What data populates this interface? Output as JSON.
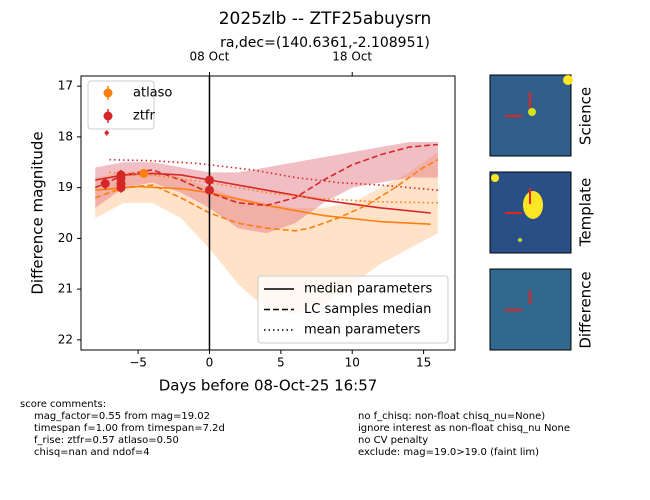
{
  "chart_data": {
    "type": "lightcurve",
    "title": "2025zlb -- ZTF25abuysrn",
    "subtitle": "ra,dec=(140.6361,-2.108951)",
    "x_label": "Days before 08-Oct-25 16:57",
    "y_label": "Difference magnitude",
    "xlim": [
      -9,
      17.2
    ],
    "ylim": [
      22.2,
      16.8
    ],
    "xticks": [
      {
        "value": -5,
        "label": "−5"
      },
      0,
      5,
      10,
      15
    ],
    "yticks": [
      17,
      18,
      19,
      20,
      21,
      22
    ],
    "top_xticks": [
      {
        "value": 0,
        "label": "08 Oct"
      },
      {
        "value": 10,
        "label": "18 Oct"
      }
    ],
    "vline": 0,
    "series": [
      {
        "name": "atlaso",
        "color": "#ff7f0e",
        "x": [
          -4.6
        ],
        "values": [
          18.72
        ],
        "errors": [
          0.08
        ]
      },
      {
        "name": "ztfr",
        "color": "#d62728",
        "x": [
          -7.3,
          -6.2,
          -6.2,
          -6.2,
          -6.2,
          0,
          0
        ],
        "values": [
          18.92,
          18.75,
          18.82,
          18.92,
          19.0,
          18.85,
          19.05
        ],
        "errors": [
          0.12,
          0.1,
          0.1,
          0.1,
          0.1,
          0.08,
          0.08
        ],
        "limits": {
          "x": [
            -7.2
          ],
          "values": [
            17.92
          ]
        }
      }
    ],
    "bands": [
      {
        "color": "#ffbf86",
        "x": [
          -8,
          -6,
          -4,
          -2,
          0,
          2,
          4,
          6,
          8,
          10,
          12,
          14,
          16
        ],
        "lower": [
          18.8,
          18.7,
          18.7,
          18.8,
          19.0,
          19.2,
          19.3,
          19.4,
          19.4,
          19.3,
          19.0,
          18.7,
          18.3
        ],
        "upper": [
          19.6,
          19.3,
          19.3,
          19.6,
          20.2,
          20.9,
          21.4,
          21.5,
          21.3,
          20.9,
          20.5,
          20.2,
          19.9
        ]
      },
      {
        "color": "#e0707a",
        "x": [
          -8,
          -6,
          -4,
          -2,
          0,
          2,
          4,
          6,
          8,
          10,
          12,
          14,
          16
        ],
        "lower": [
          18.6,
          18.5,
          18.5,
          18.6,
          18.7,
          18.7,
          18.6,
          18.5,
          18.4,
          18.3,
          18.2,
          18.1,
          18.1
        ],
        "upper": [
          19.4,
          19.0,
          18.9,
          19.1,
          19.4,
          19.8,
          19.9,
          19.7,
          19.3,
          19.0,
          18.9,
          18.8,
          18.8
        ]
      }
    ],
    "models": [
      {
        "color": "#ff7f0e",
        "style": "solid",
        "x": [
          -8,
          -5,
          -2,
          0,
          4,
          8,
          12,
          15.5
        ],
        "values": [
          19.05,
          18.98,
          19.02,
          19.1,
          19.35,
          19.55,
          19.67,
          19.72
        ]
      },
      {
        "color": "#d62728",
        "style": "solid",
        "x": [
          -8,
          -6,
          -4,
          -2,
          0,
          4,
          8,
          12,
          15.5
        ],
        "values": [
          18.85,
          18.75,
          18.72,
          18.75,
          18.85,
          19.05,
          19.25,
          19.4,
          19.5
        ]
      },
      {
        "color": "#ff7f0e",
        "style": "dashed",
        "x": [
          -8,
          -6,
          -4,
          -2,
          0,
          2,
          4,
          6,
          7,
          9,
          11,
          13,
          15,
          16
        ],
        "values": [
          19.2,
          19.0,
          18.95,
          19.2,
          19.5,
          19.7,
          19.8,
          19.85,
          19.8,
          19.6,
          19.35,
          19.0,
          18.6,
          18.45
        ]
      },
      {
        "color": "#d62728",
        "style": "dashed",
        "x": [
          -8,
          -6,
          -4,
          -2,
          0,
          2,
          4,
          6,
          8,
          10,
          12,
          14,
          16
        ],
        "values": [
          19.0,
          18.75,
          18.65,
          18.85,
          19.1,
          19.3,
          19.35,
          19.2,
          18.85,
          18.55,
          18.35,
          18.2,
          18.15
        ]
      },
      {
        "color": "#ff7f0e",
        "style": "dotted",
        "x": [
          -7,
          -4,
          0,
          4,
          8,
          12,
          16
        ],
        "values": [
          18.7,
          18.75,
          18.9,
          19.1,
          19.22,
          19.28,
          19.3
        ]
      },
      {
        "color": "#d62728",
        "style": "dotted",
        "x": [
          -7,
          -4,
          -1,
          0,
          3,
          6,
          9,
          12,
          16
        ],
        "values": [
          18.45,
          18.47,
          18.52,
          18.55,
          18.65,
          18.8,
          18.9,
          18.95,
          19.05
        ]
      }
    ],
    "line_legend": [
      {
        "name": "median parameters",
        "style": "solid"
      },
      {
        "name": "LC samples median",
        "style": "dashed"
      },
      {
        "name": "mean parameters",
        "style": "dotted"
      }
    ],
    "image_labels": [
      "Science",
      "Template",
      "Difference"
    ],
    "comments_title": "score comments:",
    "comments_left": [
      "mag_factor=0.55 from mag=19.02",
      "timespan f=1.00 from timespan=7.2d",
      "f_rise: ztfr=0.57 atlaso=0.50",
      "chisq=nan and ndof=4"
    ],
    "comments_right": [
      "no f_chisq: non-float chisq_nu=None)",
      "ignore interest as non-float chisq_nu None",
      "no CV penalty",
      "exclude: mag=19.0>19.0 (faint lim)"
    ]
  }
}
